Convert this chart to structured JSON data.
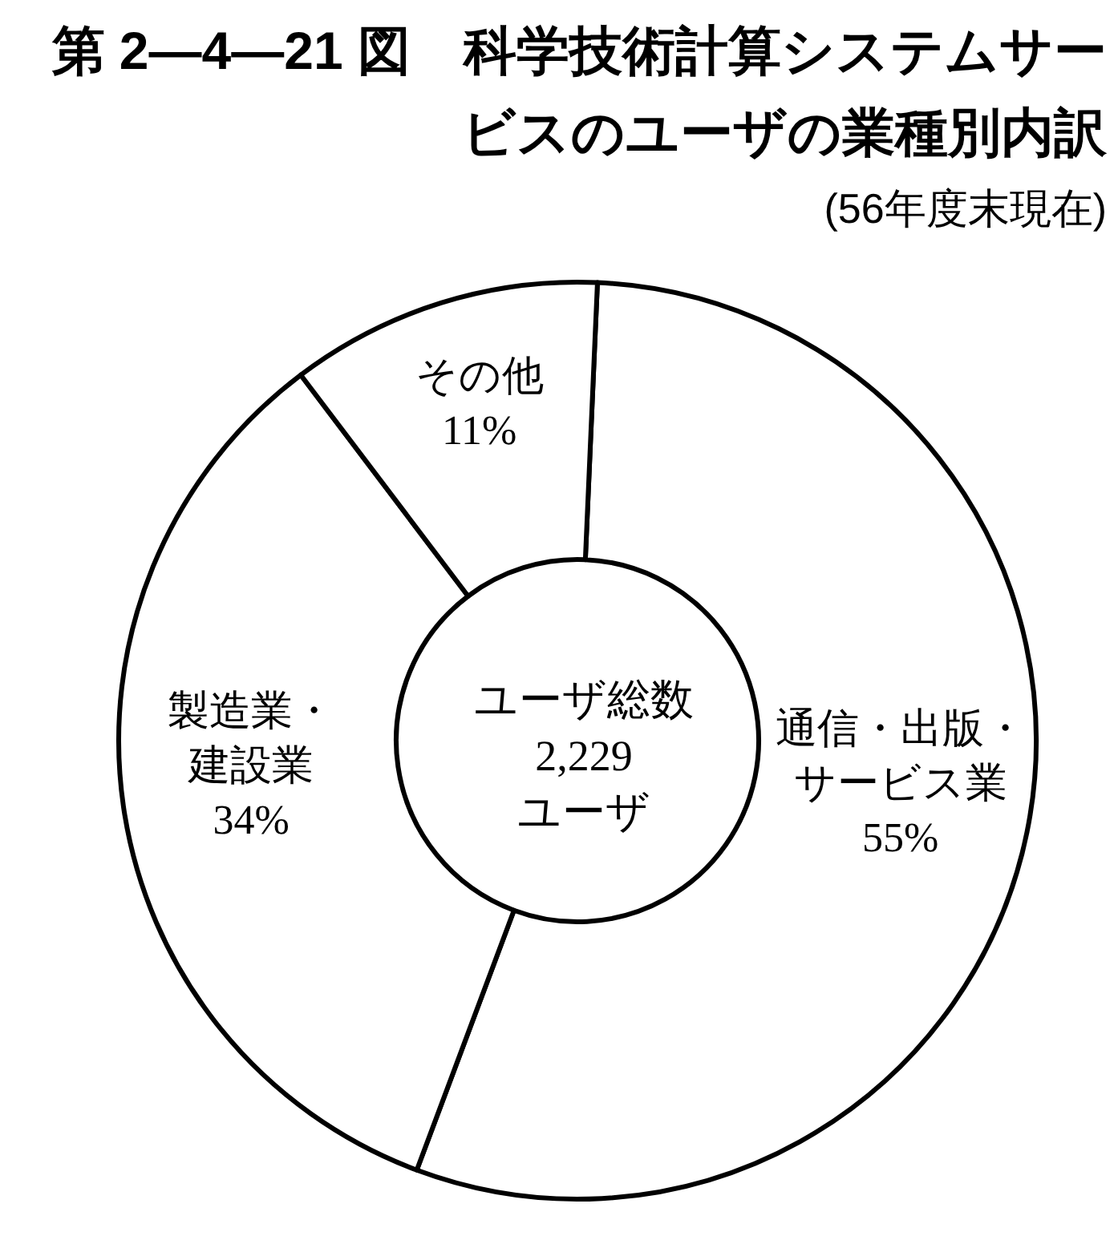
{
  "chart_data": {
    "type": "donut",
    "title": "第 2—4—21 図　科学技術計算システムサービスのユーザの業種別内訳",
    "subtitle": "(56年度末現在)",
    "categories": [
      "通信・出版・サービス業",
      "製造業・建設業",
      "その他"
    ],
    "values": [
      55,
      34,
      11
    ],
    "colors": [
      "#ffffff",
      "#ffffff",
      "#ffffff"
    ],
    "value_labels": [
      "55%",
      "34%",
      "11%"
    ],
    "annotations": [
      "ユーザ総数\n2,229\nユーザ"
    ]
  }
}
